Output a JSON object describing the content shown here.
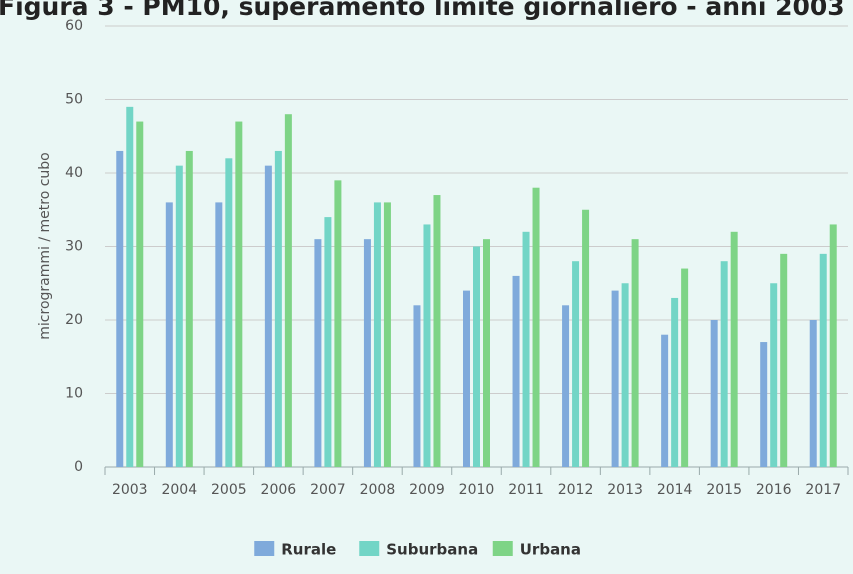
{
  "chart_data": {
    "type": "bar",
    "title": "Figura 3 - PM10, superamento limite giornaliero - anni 2003",
    "ylabel": "microgrammi / metro cubo",
    "categories": [
      "2003",
      "2004",
      "2005",
      "2006",
      "2007",
      "2008",
      "2009",
      "2010",
      "2011",
      "2012",
      "2013",
      "2014",
      "2015",
      "2016",
      "2017"
    ],
    "series": [
      {
        "name": "Rurale",
        "color": "#7faadb",
        "values": [
          43,
          36,
          36,
          41,
          31,
          31,
          22,
          24,
          26,
          22,
          24,
          18,
          20,
          17,
          20
        ]
      },
      {
        "name": "Suburbana",
        "color": "#72d5c6",
        "values": [
          49,
          41,
          42,
          43,
          34,
          36,
          33,
          30,
          32,
          28,
          25,
          23,
          28,
          25,
          29
        ]
      },
      {
        "name": "Urbana",
        "color": "#7ed486",
        "values": [
          47,
          43,
          47,
          48,
          39,
          36,
          37,
          31,
          38,
          35,
          31,
          27,
          32,
          29,
          33
        ]
      }
    ],
    "ylim": [
      0,
      60
    ],
    "yticks": [
      0,
      10,
      20,
      30,
      40,
      50,
      60
    ],
    "grid": true,
    "legend": "bottom"
  }
}
